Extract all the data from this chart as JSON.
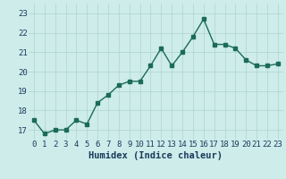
{
  "x": [
    0,
    1,
    2,
    3,
    4,
    5,
    6,
    7,
    8,
    9,
    10,
    11,
    12,
    13,
    14,
    15,
    16,
    17,
    18,
    19,
    20,
    21,
    22,
    23
  ],
  "y": [
    17.5,
    16.8,
    17.0,
    17.0,
    17.5,
    17.3,
    18.4,
    18.8,
    19.3,
    19.5,
    19.5,
    20.3,
    21.2,
    20.3,
    21.0,
    21.8,
    22.7,
    21.4,
    21.4,
    21.2,
    20.6,
    20.3,
    20.3,
    20.4
  ],
  "ylim": [
    16.5,
    23.5
  ],
  "xlim": [
    -0.5,
    23.5
  ],
  "yticks": [
    17,
    18,
    19,
    20,
    21,
    22,
    23
  ],
  "xticks": [
    0,
    1,
    2,
    3,
    4,
    5,
    6,
    7,
    8,
    9,
    10,
    11,
    12,
    13,
    14,
    15,
    16,
    17,
    18,
    19,
    20,
    21,
    22,
    23
  ],
  "xlabel": "Humidex (Indice chaleur)",
  "line_color": "#1a6b5a",
  "marker_color": "#1a6b5a",
  "bg_color": "#ceecea",
  "grid_color": "#aed4d0",
  "tick_label_color": "#1a3a5c",
  "tick_fontsize": 6.5,
  "xlabel_fontsize": 7.5,
  "linewidth": 1.0,
  "markersize": 2.5
}
